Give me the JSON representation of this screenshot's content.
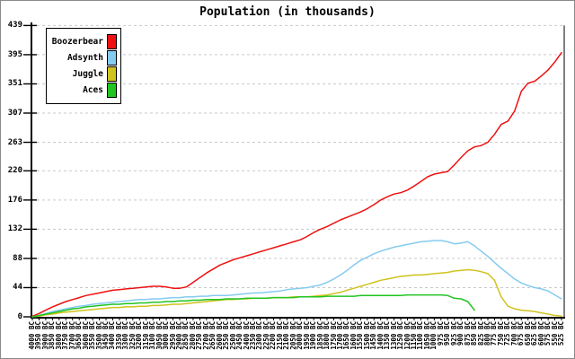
{
  "chart_data": {
    "type": "line",
    "title": "Population (in thousands)",
    "xlabel": "",
    "ylabel": "",
    "y_ticks": [
      0,
      44,
      88,
      132,
      176,
      220,
      263,
      307,
      351,
      395,
      439
    ],
    "ylim": [
      0,
      439
    ],
    "grid": "horizontal-dashed",
    "legend_position": "top-left",
    "x_labels": [
      "4000 BC",
      "3950 BC",
      "3900 BC",
      "3850 BC",
      "3800 BC",
      "3750 BC",
      "3700 BC",
      "3650 BC",
      "3600 BC",
      "3550 BC",
      "3500 BC",
      "3450 BC",
      "3400 BC",
      "3350 BC",
      "3300 BC",
      "3250 BC",
      "3200 BC",
      "3150 BC",
      "3100 BC",
      "3050 BC",
      "3000 BC",
      "2950 BC",
      "2900 BC",
      "2850 BC",
      "2800 BC",
      "2750 BC",
      "2700 BC",
      "2650 BC",
      "2600 BC",
      "2550 BC",
      "2500 BC",
      "2450 BC",
      "2400 BC",
      "2350 BC",
      "2300 BC",
      "2250 BC",
      "2200 BC",
      "2150 BC",
      "2100 BC",
      "2050 BC",
      "2000 BC",
      "1950 BC",
      "1900 BC",
      "1850 BC",
      "1800 BC",
      "1750 BC",
      "1700 BC",
      "1650 BC",
      "1600 BC",
      "1550 BC",
      "1500 BC",
      "1450 BC",
      "1400 BC",
      "1350 BC",
      "1300 BC",
      "1250 BC",
      "1200 BC",
      "1150 BC",
      "1100 BC",
      "1050 BC",
      "1000 BC",
      "975 BC",
      "950 BC",
      "925 BC",
      "900 BC",
      "875 BC",
      "850 BC",
      "825 BC",
      "800 BC",
      "775 BC",
      "750 BC",
      "725 BC",
      "700 BC",
      "675 BC",
      "650 BC",
      "625 BC",
      "600 BC",
      "575 BC",
      "550 BC",
      "525 BC"
    ],
    "series": [
      {
        "name": "Boozerbear",
        "color": "#ee1111",
        "values": [
          1,
          5,
          10,
          15,
          19,
          23,
          26,
          29,
          32,
          34,
          36,
          38,
          40,
          41,
          42,
          43,
          44,
          45,
          46,
          46,
          45,
          43,
          43,
          45,
          52,
          59,
          66,
          72,
          78,
          82,
          86,
          89,
          92,
          95,
          98,
          101,
          104,
          107,
          110,
          113,
          116,
          121,
          127,
          132,
          136,
          141,
          146,
          150,
          154,
          158,
          163,
          169,
          176,
          181,
          185,
          187,
          191,
          197,
          204,
          211,
          215,
          217,
          219,
          229,
          240,
          250,
          256,
          258,
          263,
          275,
          290,
          295,
          310,
          340,
          352,
          355,
          363,
          372,
          384,
          398
        ]
      },
      {
        "name": "Adsynth",
        "color": "#85cbf0",
        "values": [
          0,
          2,
          5,
          8,
          10,
          12,
          14,
          16,
          17,
          19,
          20,
          21,
          22,
          23,
          24,
          25,
          26,
          26,
          27,
          27,
          28,
          29,
          29,
          30,
          30,
          31,
          31,
          32,
          32,
          32,
          33,
          34,
          35,
          36,
          36,
          37,
          38,
          39,
          41,
          42,
          43,
          44,
          46,
          48,
          52,
          57,
          63,
          70,
          78,
          85,
          90,
          95,
          99,
          102,
          105,
          107,
          109,
          111,
          113,
          114,
          115,
          115,
          113,
          110,
          111,
          113,
          107,
          99,
          91,
          82,
          73,
          65,
          57,
          51,
          47,
          44,
          42,
          39,
          33,
          27
        ]
      },
      {
        "name": "Juggle",
        "color": "#cfc31d",
        "values": [
          0,
          1,
          3,
          4,
          6,
          7,
          8,
          9,
          10,
          11,
          12,
          13,
          14,
          14,
          15,
          15,
          16,
          16,
          17,
          17,
          18,
          19,
          19,
          20,
          21,
          22,
          23,
          24,
          25,
          26,
          26,
          27,
          27,
          28,
          28,
          28,
          29,
          29,
          29,
          30,
          30,
          30,
          31,
          32,
          33,
          35,
          37,
          40,
          43,
          46,
          49,
          52,
          55,
          57,
          59,
          61,
          62,
          63,
          63,
          64,
          65,
          66,
          67,
          69,
          70,
          71,
          70,
          68,
          65,
          55,
          30,
          16,
          12,
          10,
          9,
          8,
          6,
          4,
          2,
          1
        ]
      },
      {
        "name": "Aces",
        "color": "#21c422",
        "values": [
          0,
          2,
          4,
          6,
          8,
          10,
          12,
          13,
          15,
          16,
          17,
          18,
          19,
          19,
          20,
          20,
          21,
          21,
          22,
          22,
          23,
          23,
          24,
          24,
          25,
          25,
          26,
          26,
          26,
          27,
          27,
          27,
          28,
          28,
          28,
          28,
          29,
          29,
          29,
          29,
          30,
          30,
          30,
          30,
          31,
          31,
          31,
          31,
          31,
          32,
          32,
          32,
          32,
          32,
          32,
          32,
          33,
          33,
          33,
          33,
          33,
          33,
          32,
          28,
          27,
          23,
          10,
          null,
          null,
          null,
          null,
          null,
          null,
          null,
          null,
          null,
          null,
          null,
          null,
          null
        ]
      }
    ]
  },
  "colors": {
    "grid": "#c9c9c9",
    "axis": "#000000",
    "border": "#8a8a8a",
    "background": "#ffffff"
  }
}
